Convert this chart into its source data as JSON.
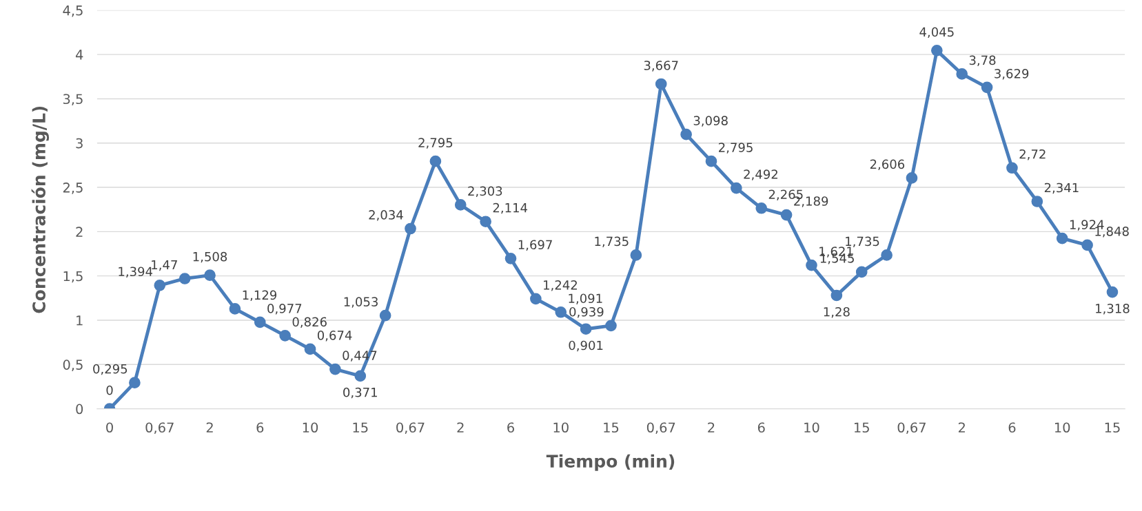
{
  "chart_data": {
    "type": "line",
    "xlabel": "Tiempo (min)",
    "ylabel": "Concentración (mg/L)",
    "categories": [
      "0",
      null,
      "0,67",
      null,
      "2",
      null,
      "6",
      null,
      "10",
      null,
      "15",
      null,
      "0,67",
      null,
      "2",
      null,
      "6",
      null,
      "10",
      null,
      "15",
      null,
      "0,67",
      null,
      "2",
      null,
      "6",
      null,
      "10",
      null,
      "15",
      null,
      "0,67",
      null,
      "2",
      null,
      "6",
      null,
      "10",
      null,
      "15"
    ],
    "series": [
      {
        "color": "#4a7ebb",
        "values": [
          0,
          0.295,
          1.394,
          1.47,
          1.508,
          1.129,
          0.977,
          0.826,
          0.674,
          0.447,
          0.371,
          1.053,
          2.034,
          2.795,
          2.303,
          2.114,
          1.697,
          1.242,
          1.091,
          0.901,
          0.939,
          1.735,
          3.667,
          3.098,
          2.795,
          2.492,
          2.265,
          2.189,
          1.621,
          1.28,
          1.545,
          1.735,
          2.606,
          4.045,
          3.78,
          3.629,
          2.72,
          2.341,
          1.924,
          1.848,
          1.318
        ],
        "value_labels": [
          "0",
          "0,295",
          "1,394",
          "1,47",
          "1,508",
          "1,129",
          "0,977",
          "0,826",
          "0,674",
          "0,447",
          "0,371",
          "1,053",
          "2,034",
          "2,795",
          "2,303",
          "2,114",
          "1,697",
          "1,242",
          "1,091",
          "0,901",
          "0,939",
          "1,735",
          "3,667",
          "3,098",
          "2,795",
          "2,492",
          "2,265",
          "2,189",
          "1,621",
          "1,28",
          "1,545",
          "1,735",
          "2,606",
          "4,045",
          "3,78",
          "3,629",
          "2,72",
          "2,341",
          "1,924",
          "1,848",
          "1,318"
        ]
      }
    ],
    "ylim": [
      0,
      4.5
    ],
    "yticks": [
      0,
      {
        "value": 0.5,
        "label": "0,5"
      },
      1,
      {
        "value": 1.5,
        "label": "1,5"
      },
      2,
      {
        "value": 2.5,
        "label": "2,5"
      },
      3,
      {
        "value": 3.5,
        "label": "3,5"
      },
      4,
      {
        "value": 4.5,
        "label": "4,5"
      }
    ],
    "grid": "y",
    "marker": "circle",
    "line_style": "solid",
    "legend": false
  }
}
